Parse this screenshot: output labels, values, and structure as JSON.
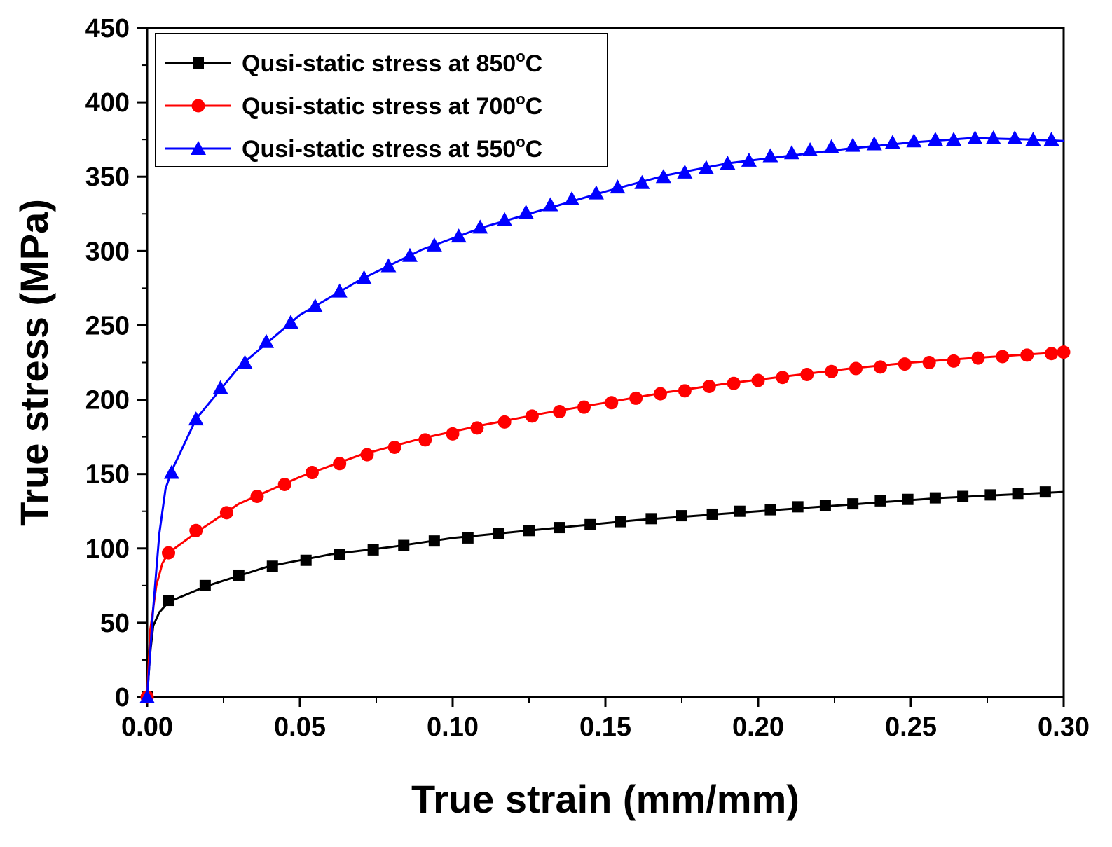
{
  "chart_data": {
    "type": "line",
    "title": "",
    "xlabel": "True strain (mm/mm)",
    "ylabel": "True stress (MPa)",
    "xlim": [
      0,
      0.3
    ],
    "ylim": [
      0,
      450
    ],
    "xticks": [
      0.0,
      0.05,
      0.1,
      0.15,
      0.2,
      0.25,
      0.3
    ],
    "yticks": [
      0,
      50,
      100,
      150,
      200,
      250,
      300,
      350,
      400,
      450
    ],
    "xtick_labels": [
      "0.00",
      "0.05",
      "0.10",
      "0.15",
      "0.20",
      "0.25",
      "0.30"
    ],
    "ytick_labels": [
      "0",
      "50",
      "100",
      "150",
      "200",
      "250",
      "300",
      "350",
      "400",
      "450"
    ],
    "legend_position": "top-left",
    "series": [
      {
        "name": "Qusi-static stress at 850",
        "unit_sup": "o",
        "unit": "C",
        "color": "#000000",
        "marker": "square",
        "line": [
          [
            0,
            0
          ],
          [
            0.001,
            30
          ],
          [
            0.002,
            48
          ],
          [
            0.004,
            57
          ],
          [
            0.007,
            64
          ],
          [
            0.02,
            75
          ],
          [
            0.04,
            88
          ],
          [
            0.06,
            96
          ],
          [
            0.08,
            101
          ],
          [
            0.1,
            107
          ],
          [
            0.12,
            111
          ],
          [
            0.14,
            115
          ],
          [
            0.16,
            119
          ],
          [
            0.18,
            122
          ],
          [
            0.2,
            125
          ],
          [
            0.22,
            128
          ],
          [
            0.24,
            131
          ],
          [
            0.26,
            134
          ],
          [
            0.28,
            136
          ],
          [
            0.3,
            138
          ]
        ],
        "markers": [
          [
            0.0,
            0
          ],
          [
            0.007,
            65
          ],
          [
            0.019,
            75
          ],
          [
            0.03,
            82
          ],
          [
            0.041,
            88
          ],
          [
            0.052,
            92
          ],
          [
            0.063,
            96
          ],
          [
            0.074,
            99
          ],
          [
            0.084,
            102
          ],
          [
            0.094,
            105
          ],
          [
            0.105,
            107
          ],
          [
            0.115,
            110
          ],
          [
            0.125,
            112
          ],
          [
            0.135,
            114
          ],
          [
            0.145,
            116
          ],
          [
            0.155,
            118
          ],
          [
            0.165,
            120
          ],
          [
            0.175,
            122
          ],
          [
            0.185,
            123
          ],
          [
            0.194,
            125
          ],
          [
            0.204,
            126
          ],
          [
            0.213,
            128
          ],
          [
            0.222,
            129
          ],
          [
            0.231,
            130
          ],
          [
            0.24,
            132
          ],
          [
            0.249,
            133
          ],
          [
            0.258,
            134
          ],
          [
            0.267,
            135
          ],
          [
            0.276,
            136
          ],
          [
            0.285,
            137
          ],
          [
            0.294,
            138
          ]
        ]
      },
      {
        "name": "Qusi-static stress at 700",
        "unit_sup": "o",
        "unit": "C",
        "color": "#ff0000",
        "marker": "circle",
        "line": [
          [
            0,
            0
          ],
          [
            0.001,
            45
          ],
          [
            0.003,
            75
          ],
          [
            0.005,
            90
          ],
          [
            0.007,
            97
          ],
          [
            0.017,
            112
          ],
          [
            0.03,
            130
          ],
          [
            0.05,
            148
          ],
          [
            0.07,
            163
          ],
          [
            0.09,
            174
          ],
          [
            0.11,
            183
          ],
          [
            0.13,
            191
          ],
          [
            0.15,
            198
          ],
          [
            0.17,
            205
          ],
          [
            0.19,
            211
          ],
          [
            0.21,
            216
          ],
          [
            0.23,
            221
          ],
          [
            0.25,
            225
          ],
          [
            0.27,
            228
          ],
          [
            0.3,
            232
          ]
        ],
        "markers": [
          [
            0.0,
            0
          ],
          [
            0.007,
            97
          ],
          [
            0.016,
            112
          ],
          [
            0.026,
            124
          ],
          [
            0.036,
            135
          ],
          [
            0.045,
            143
          ],
          [
            0.054,
            151
          ],
          [
            0.063,
            157
          ],
          [
            0.072,
            163
          ],
          [
            0.081,
            168
          ],
          [
            0.091,
            173
          ],
          [
            0.1,
            177
          ],
          [
            0.108,
            181
          ],
          [
            0.117,
            185
          ],
          [
            0.126,
            189
          ],
          [
            0.135,
            192
          ],
          [
            0.143,
            195
          ],
          [
            0.152,
            198
          ],
          [
            0.16,
            201
          ],
          [
            0.168,
            204
          ],
          [
            0.176,
            206
          ],
          [
            0.184,
            209
          ],
          [
            0.192,
            211
          ],
          [
            0.2,
            213
          ],
          [
            0.208,
            215
          ],
          [
            0.216,
            217
          ],
          [
            0.224,
            219
          ],
          [
            0.232,
            221
          ],
          [
            0.24,
            222
          ],
          [
            0.248,
            224
          ],
          [
            0.256,
            225
          ],
          [
            0.264,
            226
          ],
          [
            0.272,
            228
          ],
          [
            0.28,
            229
          ],
          [
            0.288,
            230
          ],
          [
            0.296,
            231
          ],
          [
            0.3,
            232
          ]
        ]
      },
      {
        "name": "Qusi-static stress at 550",
        "unit_sup": "o",
        "unit": "C",
        "color": "#0000ff",
        "marker": "triangle",
        "line": [
          [
            0,
            0
          ],
          [
            0.002,
            60
          ],
          [
            0.004,
            110
          ],
          [
            0.006,
            140
          ],
          [
            0.008,
            152
          ],
          [
            0.016,
            187
          ],
          [
            0.03,
            222
          ],
          [
            0.05,
            257
          ],
          [
            0.07,
            281
          ],
          [
            0.09,
            301
          ],
          [
            0.11,
            316
          ],
          [
            0.13,
            328
          ],
          [
            0.15,
            340
          ],
          [
            0.17,
            351
          ],
          [
            0.19,
            359
          ],
          [
            0.21,
            364
          ],
          [
            0.23,
            369
          ],
          [
            0.25,
            373
          ],
          [
            0.27,
            376
          ],
          [
            0.29,
            375
          ],
          [
            0.3,
            374
          ]
        ],
        "markers": [
          [
            0.0,
            0
          ],
          [
            0.008,
            151
          ],
          [
            0.016,
            187
          ],
          [
            0.024,
            208
          ],
          [
            0.032,
            225
          ],
          [
            0.039,
            239
          ],
          [
            0.047,
            252
          ],
          [
            0.055,
            263
          ],
          [
            0.063,
            273
          ],
          [
            0.071,
            282
          ],
          [
            0.079,
            290
          ],
          [
            0.086,
            297
          ],
          [
            0.094,
            304
          ],
          [
            0.102,
            310
          ],
          [
            0.109,
            316
          ],
          [
            0.117,
            321
          ],
          [
            0.124,
            326
          ],
          [
            0.132,
            331
          ],
          [
            0.139,
            335
          ],
          [
            0.147,
            339
          ],
          [
            0.154,
            343
          ],
          [
            0.162,
            346
          ],
          [
            0.169,
            350
          ],
          [
            0.176,
            353
          ],
          [
            0.183,
            356
          ],
          [
            0.19,
            359
          ],
          [
            0.197,
            361
          ],
          [
            0.204,
            364
          ],
          [
            0.211,
            366
          ],
          [
            0.217,
            368
          ],
          [
            0.224,
            370
          ],
          [
            0.231,
            371
          ],
          [
            0.238,
            372
          ],
          [
            0.244,
            373
          ],
          [
            0.251,
            374
          ],
          [
            0.258,
            375
          ],
          [
            0.264,
            375
          ],
          [
            0.271,
            376
          ],
          [
            0.277,
            376
          ],
          [
            0.284,
            376
          ],
          [
            0.29,
            375
          ],
          [
            0.296,
            375
          ]
        ]
      }
    ]
  }
}
